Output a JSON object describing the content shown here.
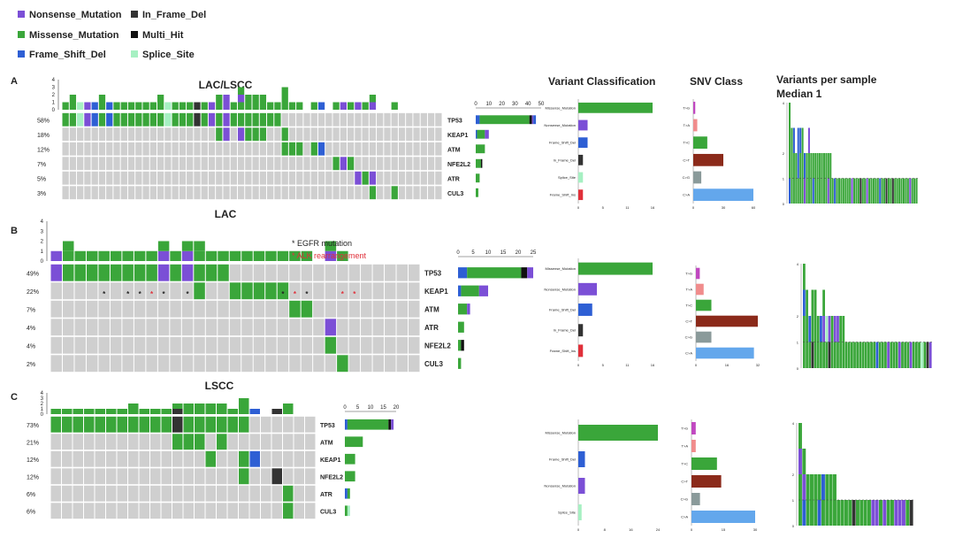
{
  "legend": [
    {
      "label": "Nonsense_Mutation",
      "color": "#7b4fd6"
    },
    {
      "label": "In_Frame_Del",
      "color": "#333333"
    },
    {
      "label": "Missense_Mutation",
      "color": "#3aa63a"
    },
    {
      "label": "Multi_Hit",
      "color": "#111111"
    },
    {
      "label": "Frame_Shift_Del",
      "color": "#2e5fd4"
    },
    {
      "label": "Splice_Site",
      "color": "#a6f0c2"
    }
  ],
  "colors": {
    "N": "#7b4fd6",
    "M": "#3aa63a",
    "F": "#2e5fd4",
    "D": "#333333",
    "H": "#111111",
    "S": "#a6f0c2",
    "gray": "#cfcfcf",
    "red": "#e0303a"
  },
  "headers": {
    "vc": "Variant Classification",
    "snv": "SNV Class",
    "vps_line1": "Variants per sample",
    "vps_line2": "Median 1"
  },
  "annotations": {
    "egfr": "* EGFR mutation",
    "alk": "* ALK rearrangement"
  },
  "panels": [
    {
      "letter": "A",
      "title": "LAC/LSCC",
      "genes": [
        "TP53",
        "KEAP1",
        "ATM",
        "NFE2L2",
        "ATR",
        "CUL3"
      ],
      "pcts": [
        "58%",
        "18%",
        "12%",
        "7%",
        "5%",
        "3%"
      ],
      "tmb_ticks": [
        "0",
        "1",
        "2",
        "3",
        "4"
      ],
      "cohort_ticks": [
        "0",
        "10",
        "20",
        "30",
        "40",
        "50"
      ],
      "cohort_bars": [
        [
          [
            "F",
            3
          ],
          [
            "M",
            38
          ],
          [
            "H",
            2
          ],
          [
            "N",
            1
          ],
          [
            "F",
            2
          ]
        ],
        [
          [
            "F",
            1
          ],
          [
            "M",
            6
          ],
          [
            "N",
            3
          ]
        ],
        [
          [
            "M",
            7
          ]
        ],
        [
          [
            "M",
            4
          ],
          [
            "H",
            1
          ]
        ],
        [
          [
            "M",
            3
          ]
        ],
        [
          [
            "M",
            2
          ]
        ]
      ],
      "vc_items": [
        "Missense_Mutation",
        "Nonsense_Mutation",
        "Frame_Shift_Del",
        "In_Frame_Del",
        "Splice_Site",
        "Frame_Shift_Ins"
      ],
      "vc_values": [
        16,
        2,
        2,
        1,
        1,
        1
      ],
      "snv_items": [
        "T>G",
        "T>A",
        "T>C",
        "C>T",
        "C>G",
        "C>A"
      ],
      "snv_values": [
        2,
        4,
        14,
        30,
        8,
        60
      ],
      "vps_ticks": [
        "0",
        "1",
        "2",
        "4"
      ]
    },
    {
      "letter": "B",
      "title": "LAC",
      "genes": [
        "TP53",
        "KEAP1",
        "ATM",
        "ATR",
        "NFE2L2",
        "CUL3"
      ],
      "pcts": [
        "49%",
        "22%",
        "7%",
        "4%",
        "4%",
        "2%"
      ],
      "tmb_ticks": [
        "0",
        "1",
        "2",
        "3",
        "4"
      ],
      "cohort_ticks": [
        "0",
        "5",
        "10",
        "15",
        "20",
        "25"
      ],
      "cohort_bars": [
        [
          [
            "F",
            3
          ],
          [
            "M",
            18
          ],
          [
            "H",
            2
          ],
          [
            "N",
            2
          ]
        ],
        [
          [
            "F",
            1
          ],
          [
            "M",
            6
          ],
          [
            "N",
            3
          ]
        ],
        [
          [
            "M",
            3
          ],
          [
            "N",
            1
          ]
        ],
        [
          [
            "M",
            2
          ]
        ],
        [
          [
            "M",
            1
          ],
          [
            "H",
            1
          ]
        ],
        [
          [
            "M",
            1
          ]
        ]
      ],
      "vc_items": [
        "Missense_Mutation",
        "Nonsense_Mutation",
        "Frame_Shift_Del",
        "In_Frame_Del",
        "Frame_Shift_Ins"
      ],
      "vc_values": [
        16,
        4,
        3,
        1,
        1
      ],
      "snv_items": [
        "T>G",
        "T>A",
        "T>C",
        "C>T",
        "C>G",
        "C>A"
      ],
      "snv_values": [
        2,
        4,
        8,
        32,
        8,
        30
      ],
      "vps_ticks": [
        "0",
        "1",
        "2",
        "4"
      ]
    },
    {
      "letter": "C",
      "title": "LSCC",
      "genes": [
        "TP53",
        "ATM",
        "KEAP1",
        "NFE2L2",
        "ATR",
        "CUL3"
      ],
      "pcts": [
        "73%",
        "21%",
        "12%",
        "12%",
        "6%",
        "6%"
      ],
      "tmb_ticks": [
        "0",
        "1",
        "2",
        "3",
        "4"
      ],
      "cohort_ticks": [
        "0",
        "5",
        "10",
        "15",
        "20"
      ],
      "cohort_bars": [
        [
          [
            "F",
            1
          ],
          [
            "M",
            16
          ],
          [
            "H",
            1
          ],
          [
            "N",
            1
          ]
        ],
        [
          [
            "M",
            7
          ]
        ],
        [
          [
            "M",
            4
          ]
        ],
        [
          [
            "M",
            4
          ]
        ],
        [
          [
            "F",
            1
          ],
          [
            "M",
            1
          ]
        ],
        [
          [
            "M",
            1
          ],
          [
            "S",
            1
          ]
        ]
      ],
      "vc_items": [
        "Missense_Mutation",
        "Frame_Shift_Del",
        "Nonsense_Mutation",
        "Splice_Site"
      ],
      "vc_values": [
        24,
        2,
        2,
        1
      ],
      "snv_items": [
        "T>G",
        "T>A",
        "T>C",
        "C>T",
        "C>G",
        "C>A"
      ],
      "snv_values": [
        2,
        2,
        12,
        14,
        4,
        30
      ],
      "vps_ticks": [
        "0",
        "1",
        "2",
        "4"
      ]
    }
  ]
}
